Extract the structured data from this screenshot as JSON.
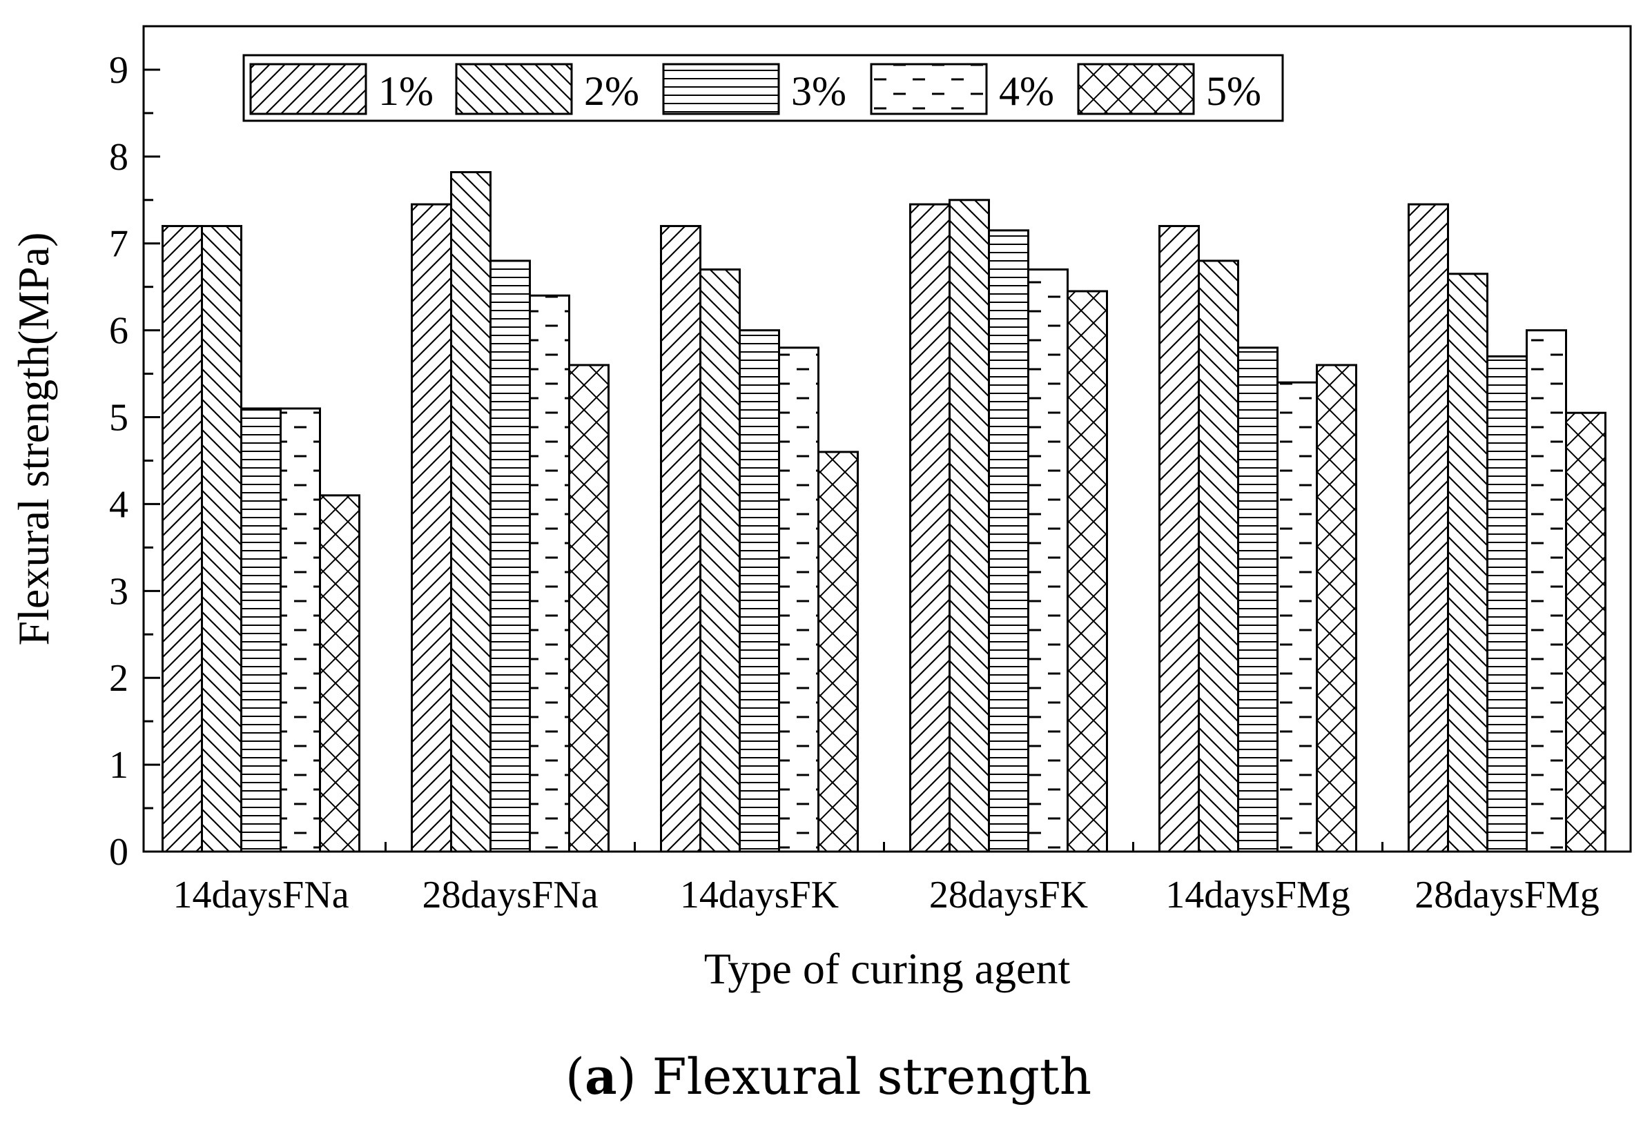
{
  "chart_data": {
    "type": "bar",
    "xlabel": "Type of curing agent",
    "ylabel": "Flexural strength(MPa)",
    "ylim": [
      0,
      9.5
    ],
    "yticks": [
      "0",
      "1",
      "2",
      "3",
      "4",
      "5",
      "6",
      "7",
      "8",
      "9"
    ],
    "categories": [
      "14daysFNa",
      "28daysFNa",
      "14daysFK",
      "28daysFK",
      "14daysFMg",
      "28daysFMg"
    ],
    "series": [
      {
        "name": "1%",
        "pattern": "hatch-forward",
        "values": [
          7.2,
          7.45,
          7.2,
          7.45,
          7.2,
          7.45
        ]
      },
      {
        "name": "2%",
        "pattern": "hatch-back",
        "values": [
          7.2,
          7.82,
          6.7,
          7.5,
          6.8,
          6.65
        ]
      },
      {
        "name": "3%",
        "pattern": "horizontal-lines",
        "values": [
          5.1,
          6.8,
          6.0,
          7.15,
          5.8,
          5.7
        ]
      },
      {
        "name": "4%",
        "pattern": "dashes",
        "values": [
          5.1,
          6.4,
          5.8,
          6.7,
          5.4,
          6.0
        ]
      },
      {
        "name": "5%",
        "pattern": "crosshatch-zigzag",
        "values": [
          4.1,
          5.6,
          4.6,
          6.45,
          5.6,
          5.05
        ]
      }
    ],
    "legend_position": "top-inside",
    "grid": false
  },
  "caption": {
    "letter": "(a)",
    "text": "Flexural strength",
    "letter_bold": "a"
  }
}
